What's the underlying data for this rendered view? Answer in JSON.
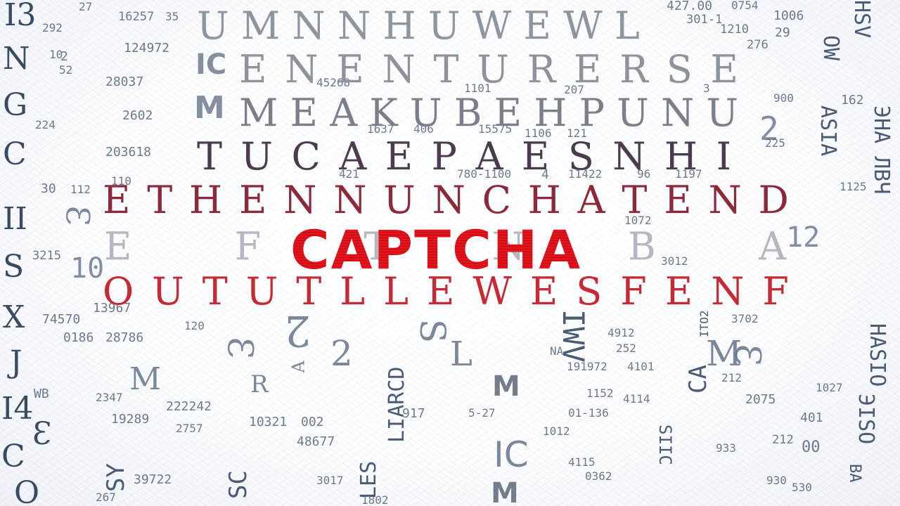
{
  "captcha": {
    "word": "CAPTCHA",
    "color": "#e3141c"
  },
  "rows": [
    {
      "letters": [
        "U",
        "M",
        "N",
        "N",
        "H",
        "U",
        "W",
        "E",
        "W",
        "L"
      ],
      "color": "#8e959f"
    },
    {
      "letters": [
        "E",
        "N",
        "E",
        "N",
        "T",
        "U",
        "R",
        "E",
        "R",
        "S",
        "E"
      ],
      "color": "#8e939b"
    },
    {
      "letters": [
        "M",
        "E",
        "A",
        "K",
        "U",
        "B",
        "E",
        "H",
        "P",
        "U",
        "N",
        "U"
      ],
      "color": "#7a7f8a"
    },
    {
      "letters": [
        "T",
        "U",
        "C",
        "A",
        "E",
        "P",
        "A",
        "E",
        "S",
        "N",
        "H",
        "I"
      ],
      "color": "#4a3c4e"
    },
    {
      "letters": [
        "E",
        "T",
        "H",
        "E",
        "N",
        "N",
        "U",
        "N",
        "C",
        "H",
        "A",
        "T",
        "E",
        "N",
        "D"
      ],
      "color": "#8c2a3c"
    },
    {
      "letters": [
        "E",
        "F",
        "T",
        "N",
        "B",
        "A"
      ],
      "color": "#b4b8be"
    },
    {
      "letters": [
        "O",
        "U",
        "T",
        "U",
        "T",
        "L",
        "L",
        "E",
        "W",
        "E",
        "S",
        "F",
        "E",
        "N",
        "F"
      ],
      "color": "#c62a35"
    }
  ],
  "left_column": [
    "I3",
    "N",
    "G",
    "C",
    "II",
    "S",
    "X",
    "J",
    "I4",
    "Ɛ",
    "C",
    "O"
  ],
  "right_column_text": [
    "HSV",
    "OW",
    "ASIA",
    "ЭНА ЛВЧ",
    "HASIO",
    "ЭISO",
    "BA"
  ],
  "numbers": [
    "27",
    "16257",
    "35",
    "427.00",
    "0754",
    "1006",
    "292",
    "124972",
    "301-1",
    "1210",
    "29",
    "10",
    "2",
    "52",
    "276",
    "28037",
    "45268",
    "1101",
    "207",
    "3",
    "900",
    "2602",
    "1637",
    "406",
    "15575",
    "1106",
    "121",
    "162",
    "224",
    "203618",
    "2",
    "421",
    "780-1100",
    "4",
    "11422",
    "96",
    "1197",
    "30",
    "112",
    "110",
    "1125",
    "3215",
    "10",
    "225",
    "1072",
    "3012",
    "12",
    "13967",
    "3702",
    "74570",
    "0186",
    "28786",
    "120",
    "4912",
    "1027",
    "2347",
    "222242",
    "19289",
    "2757",
    "10321",
    "002",
    "48677",
    "401",
    "2075",
    "39722",
    "3017",
    "1802",
    "930",
    "267",
    "530",
    "212",
    "00",
    "933",
    "1012",
    "1152",
    "4114",
    "191972",
    "4101",
    "252",
    "212",
    "5-27",
    "917",
    "01-136",
    "0362",
    "4115"
  ],
  "scatter": [
    "IC",
    "M",
    "2",
    "Ɛ",
    "M",
    "L",
    "M",
    "IC",
    "M",
    "Ɛ",
    "M",
    "R",
    "A",
    "Ɛ",
    "2",
    "12",
    "LIARCD",
    "LES",
    "SIIC",
    "NA",
    "CA",
    "WB",
    "SY",
    "SC",
    "IWV",
    "ITO2",
    "S"
  ]
}
